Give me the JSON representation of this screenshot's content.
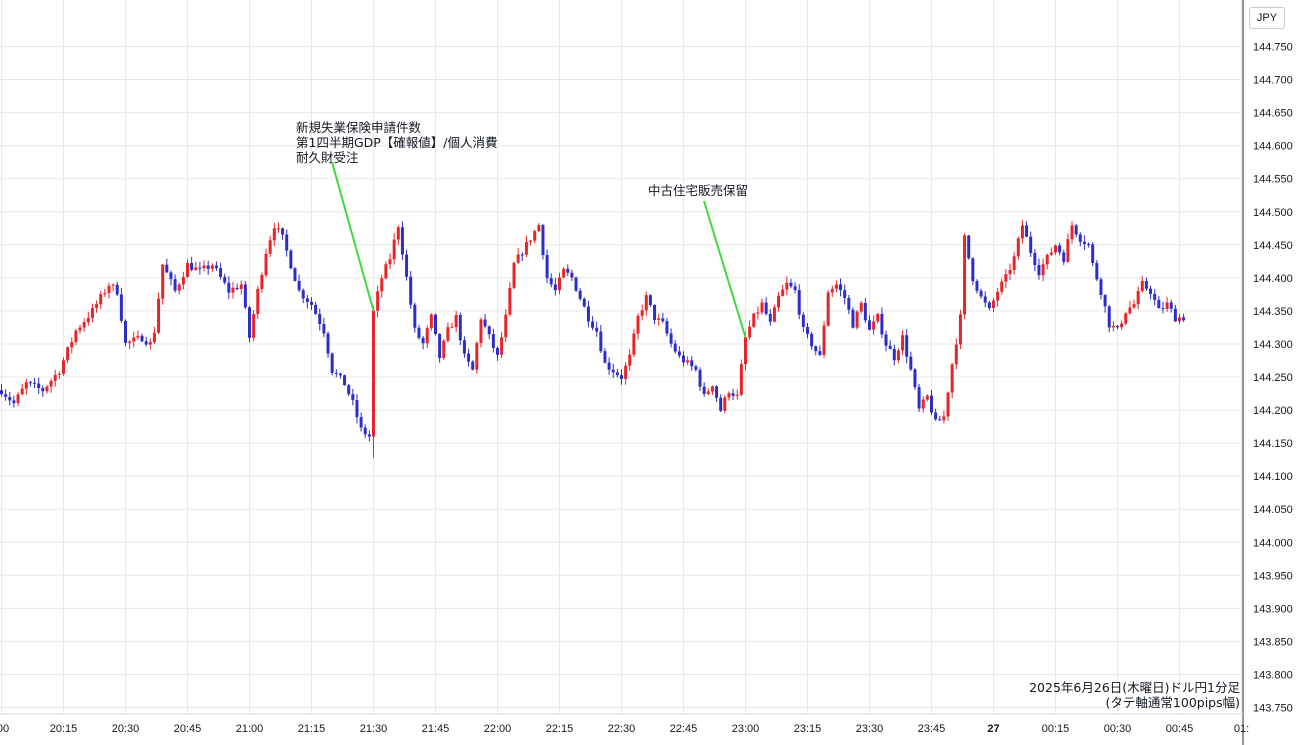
{
  "currency_label": "JPY",
  "chart_data": {
    "type": "candlestick",
    "title": "2025年6月26日(木曜日)ドル円1分足",
    "subtitle": "(タテ軸通常100pips幅)",
    "ylim": [
      143.75,
      144.75
    ],
    "y_ticks": [
      "144.750",
      "144.700",
      "144.650",
      "144.600",
      "144.550",
      "144.500",
      "144.450",
      "144.400",
      "144.350",
      "144.300",
      "144.250",
      "144.200",
      "144.150",
      "144.100",
      "144.050",
      "144.000",
      "143.950",
      "143.900",
      "143.850",
      "143.800",
      "143.750"
    ],
    "x_ticks": [
      {
        "label": ":00",
        "minute": 0
      },
      {
        "label": "20:15",
        "minute": 15
      },
      {
        "label": "20:30",
        "minute": 30
      },
      {
        "label": "20:45",
        "minute": 45
      },
      {
        "label": "21:00",
        "minute": 60
      },
      {
        "label": "21:15",
        "minute": 75
      },
      {
        "label": "21:30",
        "minute": 90
      },
      {
        "label": "21:45",
        "minute": 105
      },
      {
        "label": "22:00",
        "minute": 120
      },
      {
        "label": "22:15",
        "minute": 135
      },
      {
        "label": "22:30",
        "minute": 150
      },
      {
        "label": "22:45",
        "minute": 165
      },
      {
        "label": "23:00",
        "minute": 180
      },
      {
        "label": "23:15",
        "minute": 195
      },
      {
        "label": "23:30",
        "minute": 210
      },
      {
        "label": "23:45",
        "minute": 225
      },
      {
        "label": "27",
        "minute": 240
      },
      {
        "label": "00:15",
        "minute": 255
      },
      {
        "label": "00:30",
        "minute": 270
      },
      {
        "label": "00:45",
        "minute": 285
      },
      {
        "label": "01:",
        "minute": 300
      }
    ],
    "x_range_minutes": [
      0,
      301
    ],
    "up_color": "#e8242a",
    "down_color": "#2d2ec8",
    "annotations": [
      {
        "lines": [
          "新規失業保険申請件数",
          "第1四半期GDP【確報値】/個人消費",
          "耐久財受注"
        ],
        "minute": 90,
        "price": 144.35
      },
      {
        "lines": [
          "中古住宅販売保留"
        ],
        "minute": 180,
        "price": 144.31
      }
    ],
    "anchors": [
      [
        0,
        144.23
      ],
      [
        3,
        144.21
      ],
      [
        6,
        144.24
      ],
      [
        10,
        144.23
      ],
      [
        14,
        144.26
      ],
      [
        18,
        144.32
      ],
      [
        22,
        144.35
      ],
      [
        26,
        144.39
      ],
      [
        28,
        144.38
      ],
      [
        30,
        144.3
      ],
      [
        34,
        144.31
      ],
      [
        36,
        144.3
      ],
      [
        37,
        144.32
      ],
      [
        39,
        144.42
      ],
      [
        42,
        144.38
      ],
      [
        45,
        144.42
      ],
      [
        48,
        144.41
      ],
      [
        51,
        144.42
      ],
      [
        55,
        144.38
      ],
      [
        58,
        144.39
      ],
      [
        60,
        144.31
      ],
      [
        62,
        144.38
      ],
      [
        64,
        144.44
      ],
      [
        66,
        144.48
      ],
      [
        68,
        144.46
      ],
      [
        70,
        144.42
      ],
      [
        72,
        144.38
      ],
      [
        75,
        144.36
      ],
      [
        78,
        144.32
      ],
      [
        80,
        144.26
      ],
      [
        83,
        144.24
      ],
      [
        85,
        144.21
      ],
      [
        87,
        144.17
      ],
      [
        89,
        144.16
      ],
      [
        90,
        144.35
      ],
      [
        92,
        144.4
      ],
      [
        94,
        144.43
      ],
      [
        96,
        144.48
      ],
      [
        98,
        144.4
      ],
      [
        100,
        144.32
      ],
      [
        102,
        144.3
      ],
      [
        104,
        144.34
      ],
      [
        106,
        144.28
      ],
      [
        108,
        144.32
      ],
      [
        110,
        144.34
      ],
      [
        112,
        144.28
      ],
      [
        114,
        144.26
      ],
      [
        116,
        144.34
      ],
      [
        118,
        144.31
      ],
      [
        120,
        144.28
      ],
      [
        122,
        144.34
      ],
      [
        124,
        144.42
      ],
      [
        126,
        144.44
      ],
      [
        128,
        144.46
      ],
      [
        130,
        144.48
      ],
      [
        132,
        144.4
      ],
      [
        134,
        144.38
      ],
      [
        136,
        144.41
      ],
      [
        138,
        144.4
      ],
      [
        140,
        144.37
      ],
      [
        142,
        144.34
      ],
      [
        144,
        144.32
      ],
      [
        146,
        144.27
      ],
      [
        148,
        144.26
      ],
      [
        150,
        144.25
      ],
      [
        152,
        144.28
      ],
      [
        154,
        144.34
      ],
      [
        156,
        144.37
      ],
      [
        158,
        144.34
      ],
      [
        160,
        144.33
      ],
      [
        162,
        144.3
      ],
      [
        164,
        144.28
      ],
      [
        166,
        144.27
      ],
      [
        168,
        144.26
      ],
      [
        170,
        144.22
      ],
      [
        172,
        144.24
      ],
      [
        174,
        144.2
      ],
      [
        176,
        144.23
      ],
      [
        178,
        144.22
      ],
      [
        180,
        144.31
      ],
      [
        182,
        144.34
      ],
      [
        184,
        144.36
      ],
      [
        186,
        144.33
      ],
      [
        188,
        144.37
      ],
      [
        190,
        144.39
      ],
      [
        192,
        144.38
      ],
      [
        194,
        144.32
      ],
      [
        196,
        144.3
      ],
      [
        198,
        144.28
      ],
      [
        200,
        144.38
      ],
      [
        202,
        144.39
      ],
      [
        204,
        144.37
      ],
      [
        206,
        144.33
      ],
      [
        208,
        144.36
      ],
      [
        210,
        144.32
      ],
      [
        212,
        144.34
      ],
      [
        214,
        144.3
      ],
      [
        216,
        144.28
      ],
      [
        218,
        144.31
      ],
      [
        220,
        144.26
      ],
      [
        222,
        144.2
      ],
      [
        224,
        144.22
      ],
      [
        226,
        144.18
      ],
      [
        228,
        144.19
      ],
      [
        230,
        144.27
      ],
      [
        232,
        144.34
      ],
      [
        233,
        144.46
      ],
      [
        235,
        144.4
      ],
      [
        237,
        144.37
      ],
      [
        239,
        144.35
      ],
      [
        241,
        144.38
      ],
      [
        243,
        144.4
      ],
      [
        245,
        144.43
      ],
      [
        247,
        144.48
      ],
      [
        249,
        144.44
      ],
      [
        251,
        144.41
      ],
      [
        253,
        144.43
      ],
      [
        255,
        144.45
      ],
      [
        257,
        144.43
      ],
      [
        259,
        144.48
      ],
      [
        261,
        144.46
      ],
      [
        263,
        144.45
      ],
      [
        264,
        144.42
      ],
      [
        266,
        144.38
      ],
      [
        268,
        144.33
      ],
      [
        270,
        144.32
      ],
      [
        272,
        144.35
      ],
      [
        274,
        144.36
      ],
      [
        276,
        144.39
      ],
      [
        278,
        144.38
      ],
      [
        280,
        144.35
      ],
      [
        282,
        144.36
      ],
      [
        284,
        144.34
      ],
      [
        286,
        144.34
      ]
    ]
  }
}
